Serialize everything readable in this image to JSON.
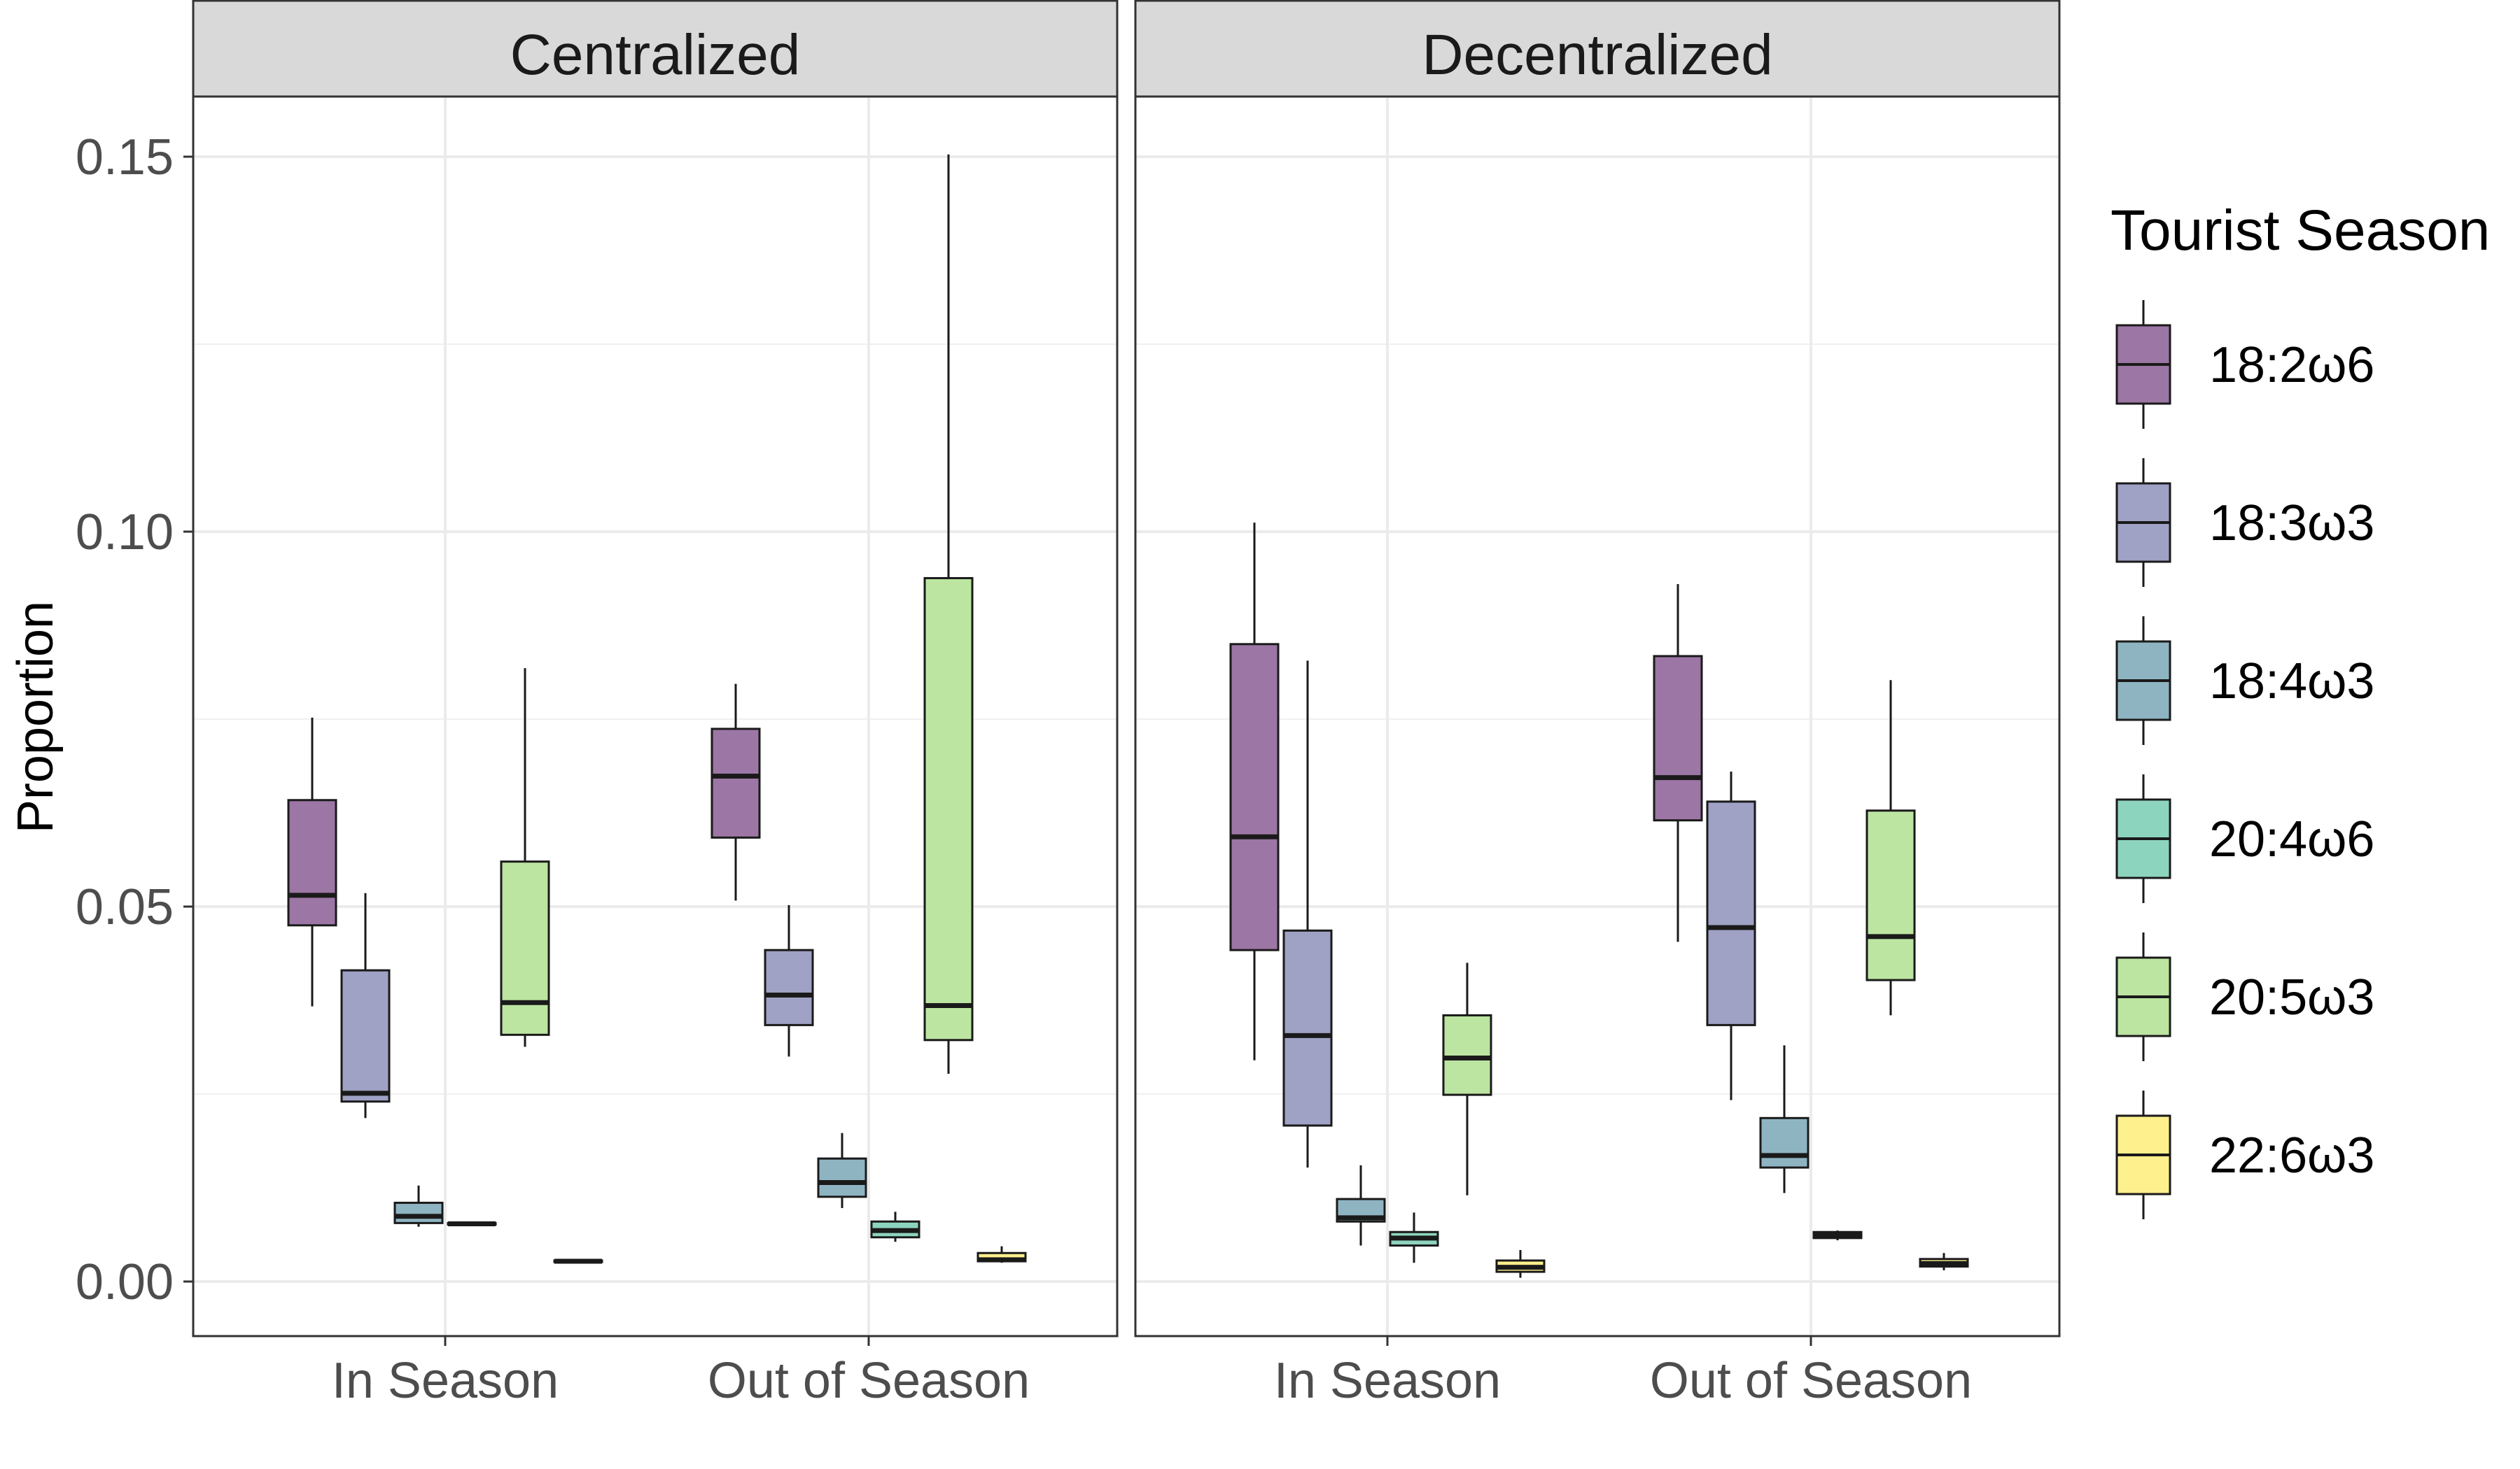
{
  "chart_data": {
    "type": "boxplot",
    "ylabel": "Proportion",
    "xlabel": "",
    "ylim": [
      -0.0075,
      0.16
    ],
    "yticks": [
      0.0,
      0.05,
      0.1,
      0.15
    ],
    "ytick_labels": [
      "0.00",
      "0.05",
      "0.10",
      "0.15"
    ],
    "grid": true,
    "legend": {
      "title": "Tourist Season",
      "placement": "right",
      "entries": [
        "18:2ω6",
        "18:3ω3",
        "18:4ω3",
        "20:4ω6",
        "20:5ω3",
        "22:6ω3"
      ]
    },
    "colors": [
      "#9c76a4",
      "#9fa1c5",
      "#8eb4c2",
      "#8dd4bf",
      "#bce5a1",
      "#fdf08d"
    ],
    "categories": [
      "In Season",
      "Out of Season"
    ],
    "facets": [
      {
        "title": "Centralized",
        "groups": [
          {
            "category": "In Season",
            "boxes": [
              {
                "series": "18:2ω6",
                "min": 0.0367,
                "q1": 0.0475,
                "median": 0.0515,
                "q3": 0.0642,
                "max": 0.0752
              },
              {
                "series": "18:3ω3",
                "min": 0.0218,
                "q1": 0.024,
                "median": 0.0251,
                "q3": 0.0415,
                "max": 0.0518
              },
              {
                "series": "18:4ω3",
                "min": 0.0073,
                "q1": 0.0078,
                "median": 0.0087,
                "q3": 0.0105,
                "max": 0.0128
              },
              {
                "series": "20:4ω6",
                "min": 0.0075,
                "q1": 0.0076,
                "median": 0.0077,
                "q3": 0.0078,
                "max": 0.0079
              },
              {
                "series": "20:5ω3",
                "min": 0.0313,
                "q1": 0.0329,
                "median": 0.0372,
                "q3": 0.056,
                "max": 0.0818
              },
              {
                "series": "22:6ω3",
                "min": 0.0025,
                "q1": 0.0026,
                "median": 0.0027,
                "q3": 0.0028,
                "max": 0.0029
              }
            ]
          },
          {
            "category": "Out of Season",
            "boxes": [
              {
                "series": "18:2ω6",
                "min": 0.0508,
                "q1": 0.0592,
                "median": 0.0674,
                "q3": 0.0737,
                "max": 0.0797
              },
              {
                "series": "18:3ω3",
                "min": 0.03,
                "q1": 0.0342,
                "median": 0.0382,
                "q3": 0.0442,
                "max": 0.0502
              },
              {
                "series": "18:4ω3",
                "min": 0.0098,
                "q1": 0.0113,
                "median": 0.0132,
                "q3": 0.0164,
                "max": 0.0198
              },
              {
                "series": "20:4ω6",
                "min": 0.0053,
                "q1": 0.0059,
                "median": 0.0068,
                "q3": 0.008,
                "max": 0.0093
              },
              {
                "series": "20:5ω3",
                "min": 0.0277,
                "q1": 0.0322,
                "median": 0.0368,
                "q3": 0.0938,
                "max": 0.1503
              },
              {
                "series": "22:6ω3",
                "min": 0.0025,
                "q1": 0.0027,
                "median": 0.0029,
                "q3": 0.0038,
                "max": 0.0047
              }
            ]
          }
        ]
      },
      {
        "title": "Decentralized",
        "groups": [
          {
            "category": "In Season",
            "boxes": [
              {
                "series": "18:2ω6",
                "min": 0.0295,
                "q1": 0.0442,
                "median": 0.0593,
                "q3": 0.085,
                "max": 0.1012
              },
              {
                "series": "18:3ω3",
                "min": 0.0152,
                "q1": 0.0208,
                "median": 0.0328,
                "q3": 0.0468,
                "max": 0.0828
              },
              {
                "series": "18:4ω3",
                "min": 0.0048,
                "q1": 0.008,
                "median": 0.0085,
                "q3": 0.011,
                "max": 0.0155
              },
              {
                "series": "20:4ω6",
                "min": 0.0025,
                "q1": 0.0048,
                "median": 0.0058,
                "q3": 0.0066,
                "max": 0.0092
              },
              {
                "series": "20:5ω3",
                "min": 0.0115,
                "q1": 0.0249,
                "median": 0.0298,
                "q3": 0.0355,
                "max": 0.0425
              },
              {
                "series": "22:6ω3",
                "min": 0.0005,
                "q1": 0.0013,
                "median": 0.0019,
                "q3": 0.0028,
                "max": 0.0042
              }
            ]
          },
          {
            "category": "Out of Season",
            "boxes": [
              {
                "series": "18:2ω6",
                "min": 0.0453,
                "q1": 0.0615,
                "median": 0.0672,
                "q3": 0.0834,
                "max": 0.093
              },
              {
                "series": "18:3ω3",
                "min": 0.0242,
                "q1": 0.0342,
                "median": 0.0472,
                "q3": 0.064,
                "max": 0.068
              },
              {
                "series": "18:4ω3",
                "min": 0.0118,
                "q1": 0.0152,
                "median": 0.0168,
                "q3": 0.0218,
                "max": 0.0315
              },
              {
                "series": "20:4ω6",
                "min": 0.0055,
                "q1": 0.0058,
                "median": 0.0062,
                "q3": 0.0066,
                "max": 0.0068
              },
              {
                "series": "20:5ω3",
                "min": 0.0355,
                "q1": 0.0402,
                "median": 0.046,
                "q3": 0.0628,
                "max": 0.0802
              },
              {
                "series": "22:6ω3",
                "min": 0.0015,
                "q1": 0.002,
                "median": 0.0024,
                "q3": 0.003,
                "max": 0.0038
              }
            ]
          }
        ]
      }
    ]
  }
}
